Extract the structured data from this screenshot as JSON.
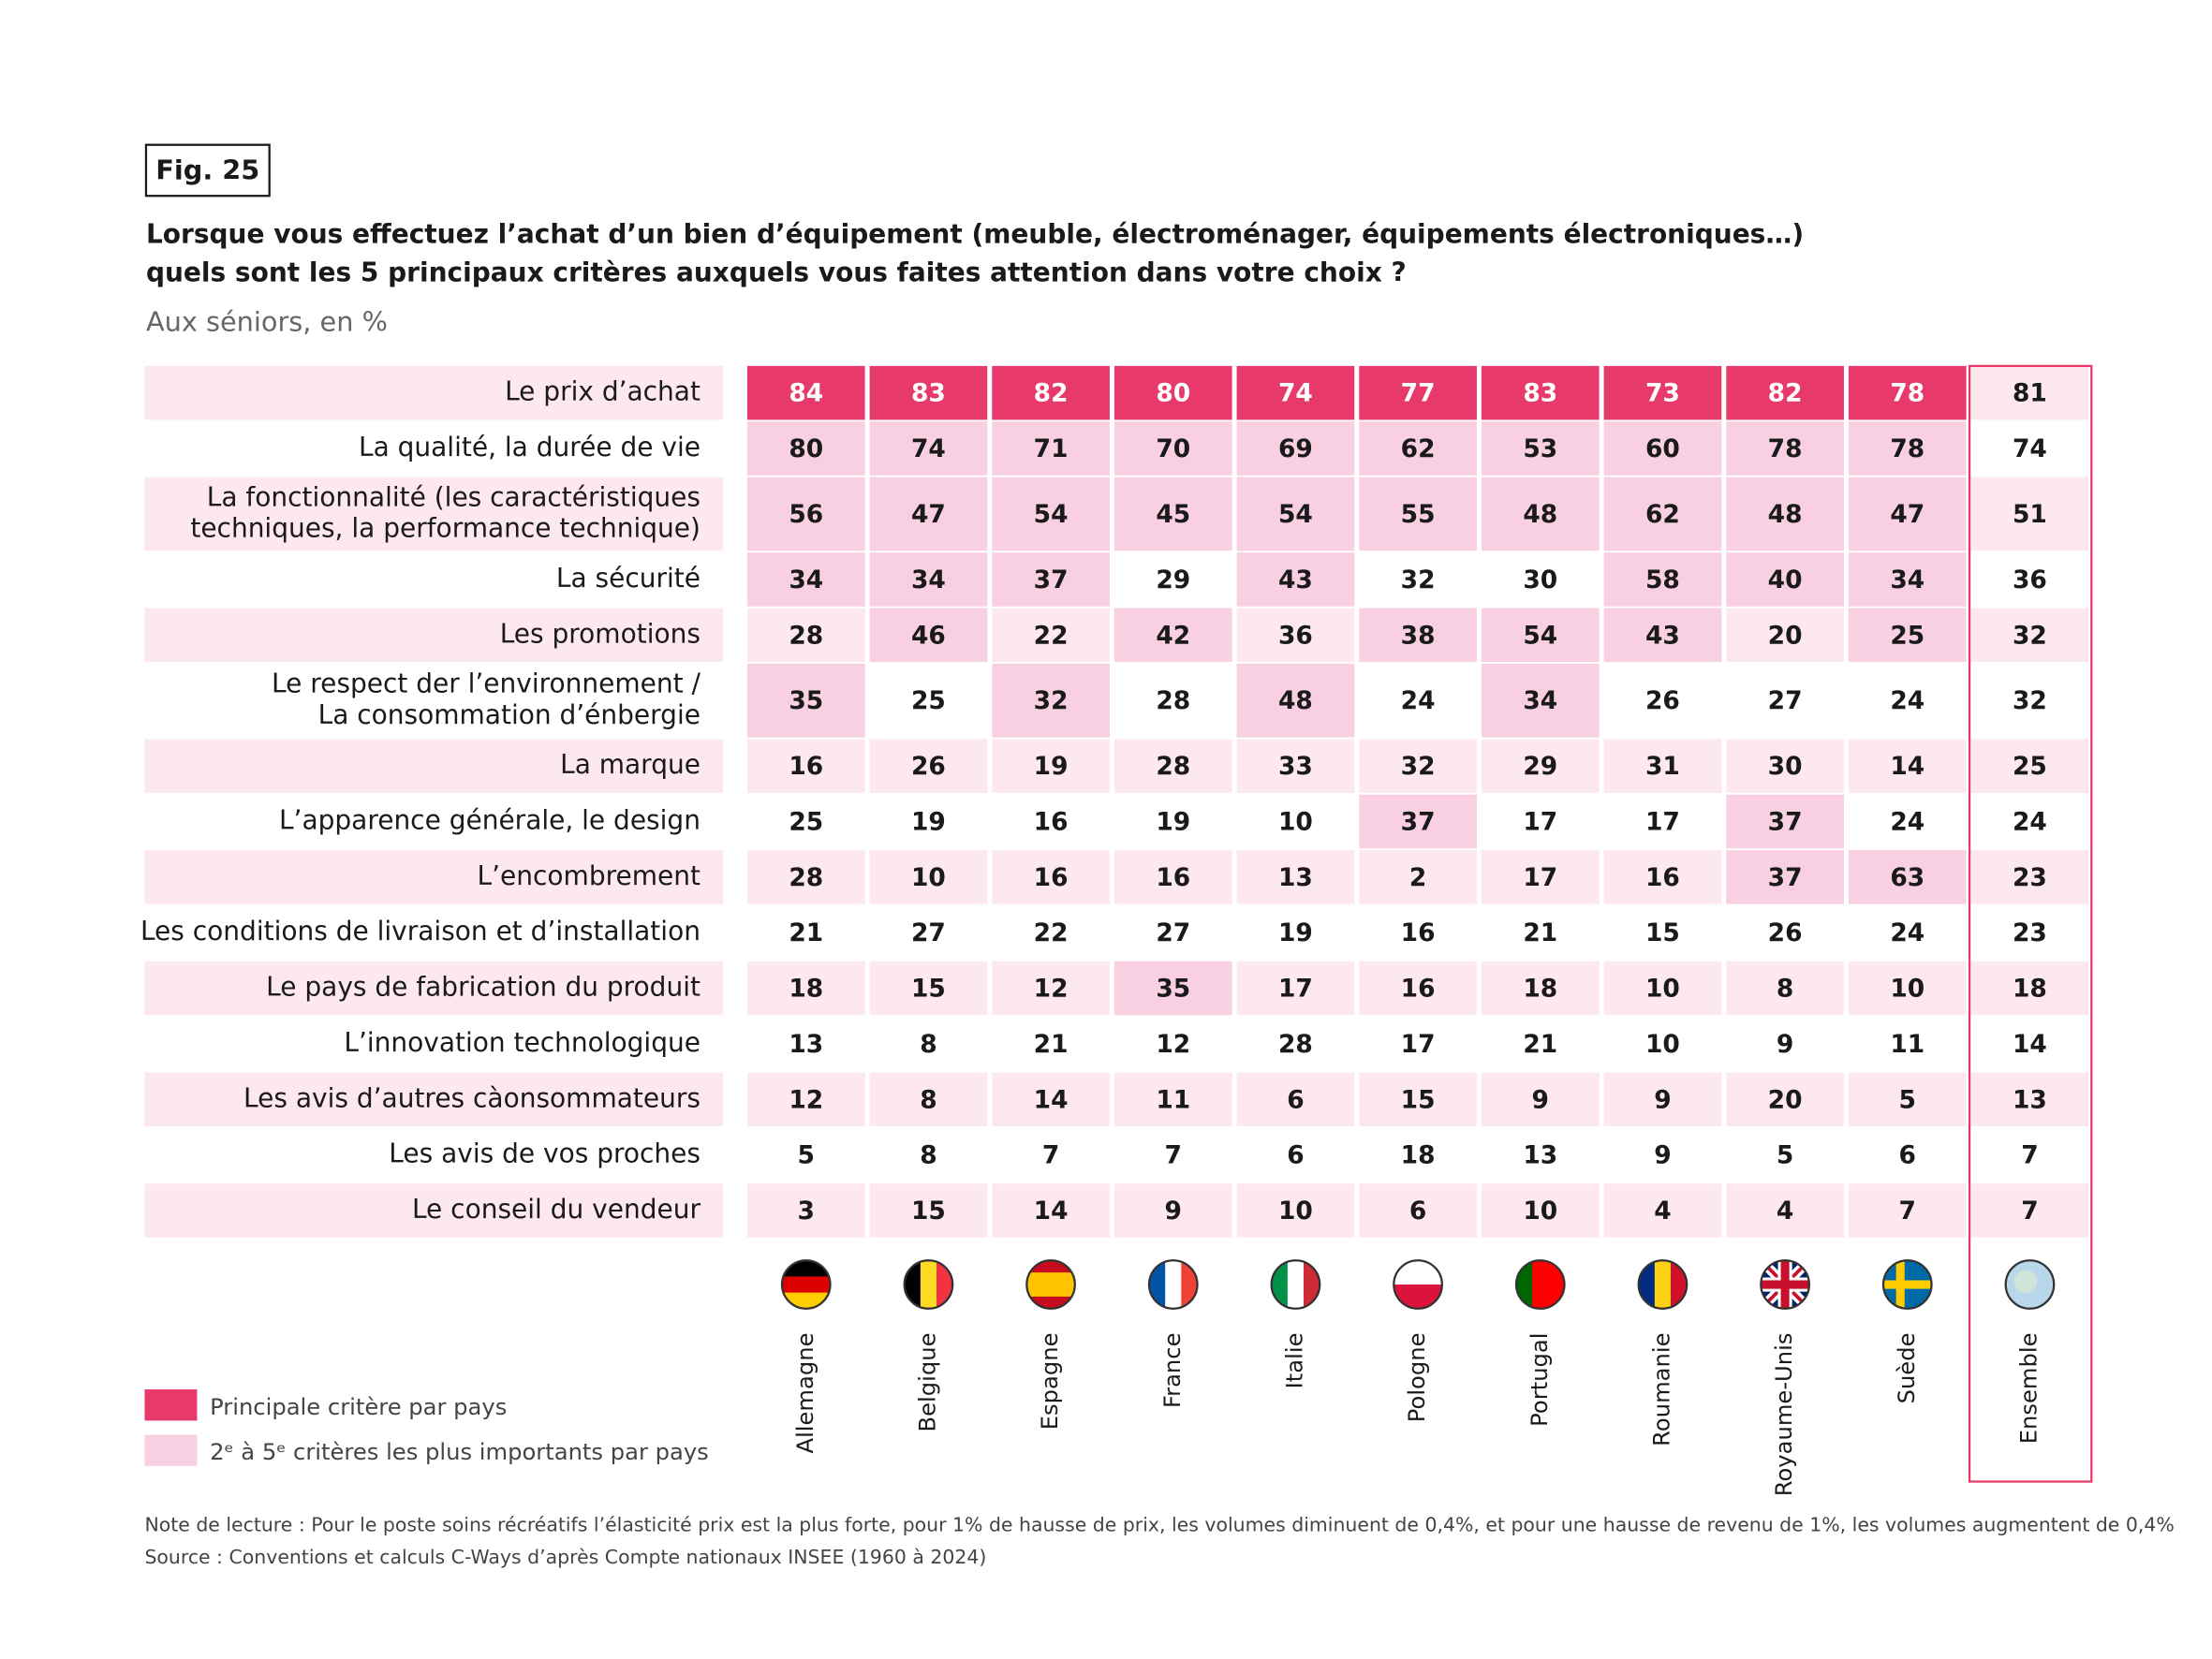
{
  "figure": "Fig. 25",
  "title": [
    "Lorsque vous effectuez l’achat d’un bien d’équipement (meuble, électroménager, équipements électroniques…)",
    "quels sont les 5 principaux critères auxquels vous faites attention dans votre choix ?"
  ],
  "subtitle": "Aux séniors, en  %",
  "legend": [
    {
      "label": "Principale critère par pays",
      "color": "#e8396b"
    },
    {
      "label": "2ᵉ à 5ᵉ critères les plus importants par pays",
      "color": "#f8d0e2"
    }
  ],
  "columns": [
    "Allemagne",
    "Belgique",
    "Espagne",
    "France",
    "Italie",
    "Pologne",
    "Portugal",
    "Roumanie",
    "Royaume-Unis",
    "Suède",
    "Ensemble"
  ],
  "rows": [
    {
      "label": [
        "Le prix d’achat"
      ],
      "values": [
        84,
        83,
        82,
        80,
        74,
        77,
        83,
        73,
        82,
        78,
        81
      ],
      "highlight": [
        0,
        0,
        0,
        0,
        0,
        0,
        0,
        0,
        0,
        0,
        null
      ]
    },
    {
      "label": [
        "La qualité, la durée de vie"
      ],
      "values": [
        80,
        74,
        71,
        70,
        69,
        62,
        53,
        60,
        78,
        78,
        74
      ],
      "highlight": [
        1,
        1,
        1,
        1,
        1,
        1,
        1,
        1,
        1,
        1,
        null
      ]
    },
    {
      "label": [
        "La fonctionnalité (les caractéristiques",
        "techniques, la performance technique)"
      ],
      "values": [
        56,
        47,
        54,
        45,
        54,
        55,
        48,
        62,
        48,
        47,
        51
      ],
      "highlight": [
        1,
        1,
        1,
        1,
        1,
        1,
        1,
        1,
        1,
        1,
        null
      ]
    },
    {
      "label": [
        "La sécurité"
      ],
      "values": [
        34,
        34,
        37,
        29,
        43,
        32,
        30,
        58,
        40,
        34,
        36
      ],
      "highlight": [
        1,
        1,
        1,
        null,
        1,
        null,
        null,
        1,
        1,
        1,
        null
      ]
    },
    {
      "label": [
        "Les promotions"
      ],
      "values": [
        28,
        46,
        22,
        42,
        36,
        38,
        54,
        43,
        20,
        25,
        32
      ],
      "highlight": [
        null,
        1,
        null,
        1,
        null,
        1,
        1,
        1,
        null,
        1,
        null
      ]
    },
    {
      "label": [
        "Le respect der l’environnement /",
        "La consommation d’énbergie"
      ],
      "values": [
        35,
        25,
        32,
        28,
        48,
        24,
        34,
        26,
        27,
        24,
        32
      ],
      "highlight": [
        1,
        null,
        1,
        null,
        1,
        null,
        1,
        null,
        null,
        null,
        null
      ]
    },
    {
      "label": [
        "La marque"
      ],
      "values": [
        16,
        26,
        19,
        28,
        33,
        32,
        29,
        31,
        30,
        14,
        25
      ],
      "highlight": [
        null,
        null,
        null,
        null,
        null,
        null,
        null,
        null,
        null,
        null,
        null
      ]
    },
    {
      "label": [
        "L’apparence générale, le design"
      ],
      "values": [
        25,
        19,
        16,
        19,
        10,
        37,
        17,
        17,
        37,
        24,
        24
      ],
      "highlight": [
        null,
        null,
        null,
        null,
        null,
        1,
        null,
        null,
        1,
        null,
        null
      ]
    },
    {
      "label": [
        "L’encombrement"
      ],
      "values": [
        28,
        10,
        16,
        16,
        13,
        2,
        17,
        16,
        37,
        63,
        23
      ],
      "highlight": [
        null,
        null,
        null,
        null,
        null,
        null,
        null,
        null,
        1,
        1,
        null
      ]
    },
    {
      "label": [
        "Les conditions de livraison et d’installation"
      ],
      "values": [
        21,
        27,
        22,
        27,
        19,
        16,
        21,
        15,
        26,
        24,
        23
      ],
      "highlight": [
        null,
        null,
        null,
        null,
        null,
        null,
        null,
        null,
        null,
        null,
        null
      ]
    },
    {
      "label": [
        "Le pays de fabrication du produit"
      ],
      "values": [
        18,
        15,
        12,
        35,
        17,
        16,
        18,
        10,
        8,
        10,
        18
      ],
      "highlight": [
        null,
        null,
        null,
        1,
        null,
        null,
        null,
        null,
        null,
        null,
        null
      ]
    },
    {
      "label": [
        "L’innovation technologique"
      ],
      "values": [
        13,
        8,
        21,
        12,
        28,
        17,
        21,
        10,
        9,
        11,
        14
      ],
      "highlight": [
        null,
        null,
        null,
        null,
        null,
        null,
        null,
        null,
        null,
        null,
        null
      ]
    },
    {
      "label": [
        "Les avis d’autres càonsommateurs"
      ],
      "values": [
        12,
        8,
        14,
        11,
        6,
        15,
        9,
        9,
        20,
        5,
        13
      ],
      "highlight": [
        null,
        null,
        null,
        null,
        null,
        null,
        null,
        null,
        null,
        null,
        null
      ]
    },
    {
      "label": [
        "Les avis de vos proches"
      ],
      "values": [
        5,
        8,
        7,
        7,
        6,
        18,
        13,
        9,
        5,
        6,
        7
      ],
      "highlight": [
        null,
        null,
        null,
        null,
        null,
        null,
        null,
        null,
        null,
        null,
        null
      ]
    },
    {
      "label": [
        "Le conseil du vendeur"
      ],
      "values": [
        3,
        15,
        14,
        9,
        10,
        6,
        10,
        4,
        4,
        7,
        7
      ],
      "highlight": [
        null,
        null,
        null,
        null,
        null,
        null,
        null,
        null,
        null,
        null,
        null
      ]
    }
  ],
  "notes": [
    "Note de lecture : Pour le poste soins récréatifs  l’élasticité prix est la plus forte, pour 1% de hausse de prix, les volumes diminuent de 0,4%, et pour une hausse de revenu de 1%, les volumes augmentent de 0,4%",
    "Source : Conventions et calculs C-Ways d’après Compte nationaux INSEE (1960 à 2024)"
  ]
}
